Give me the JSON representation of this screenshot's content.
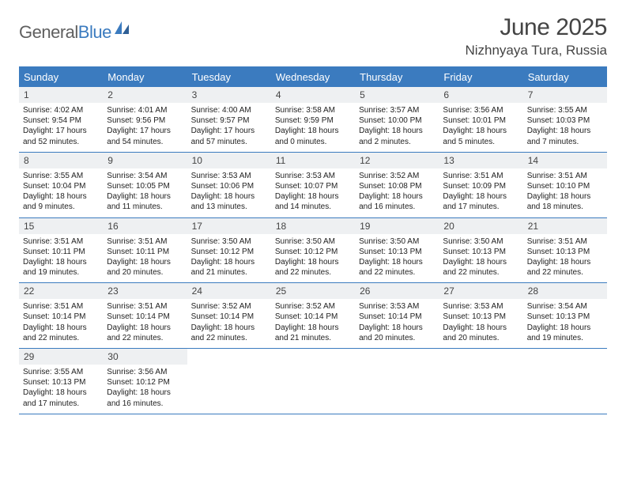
{
  "logo": {
    "text_gray": "General",
    "text_blue": "Blue"
  },
  "title": {
    "month": "June 2025",
    "location": "Nizhnyaya Tura, Russia"
  },
  "colors": {
    "header_bar": "#3b7bbf",
    "daynum_bg": "#eef0f2",
    "divider": "#3b7bbf",
    "text": "#222222",
    "title_text": "#444444"
  },
  "weekdays": [
    "Sunday",
    "Monday",
    "Tuesday",
    "Wednesday",
    "Thursday",
    "Friday",
    "Saturday"
  ],
  "weeks": [
    [
      {
        "n": "1",
        "sr": "Sunrise: 4:02 AM",
        "ss": "Sunset: 9:54 PM",
        "dl1": "Daylight: 17 hours",
        "dl2": "and 52 minutes."
      },
      {
        "n": "2",
        "sr": "Sunrise: 4:01 AM",
        "ss": "Sunset: 9:56 PM",
        "dl1": "Daylight: 17 hours",
        "dl2": "and 54 minutes."
      },
      {
        "n": "3",
        "sr": "Sunrise: 4:00 AM",
        "ss": "Sunset: 9:57 PM",
        "dl1": "Daylight: 17 hours",
        "dl2": "and 57 minutes."
      },
      {
        "n": "4",
        "sr": "Sunrise: 3:58 AM",
        "ss": "Sunset: 9:59 PM",
        "dl1": "Daylight: 18 hours",
        "dl2": "and 0 minutes."
      },
      {
        "n": "5",
        "sr": "Sunrise: 3:57 AM",
        "ss": "Sunset: 10:00 PM",
        "dl1": "Daylight: 18 hours",
        "dl2": "and 2 minutes."
      },
      {
        "n": "6",
        "sr": "Sunrise: 3:56 AM",
        "ss": "Sunset: 10:01 PM",
        "dl1": "Daylight: 18 hours",
        "dl2": "and 5 minutes."
      },
      {
        "n": "7",
        "sr": "Sunrise: 3:55 AM",
        "ss": "Sunset: 10:03 PM",
        "dl1": "Daylight: 18 hours",
        "dl2": "and 7 minutes."
      }
    ],
    [
      {
        "n": "8",
        "sr": "Sunrise: 3:55 AM",
        "ss": "Sunset: 10:04 PM",
        "dl1": "Daylight: 18 hours",
        "dl2": "and 9 minutes."
      },
      {
        "n": "9",
        "sr": "Sunrise: 3:54 AM",
        "ss": "Sunset: 10:05 PM",
        "dl1": "Daylight: 18 hours",
        "dl2": "and 11 minutes."
      },
      {
        "n": "10",
        "sr": "Sunrise: 3:53 AM",
        "ss": "Sunset: 10:06 PM",
        "dl1": "Daylight: 18 hours",
        "dl2": "and 13 minutes."
      },
      {
        "n": "11",
        "sr": "Sunrise: 3:53 AM",
        "ss": "Sunset: 10:07 PM",
        "dl1": "Daylight: 18 hours",
        "dl2": "and 14 minutes."
      },
      {
        "n": "12",
        "sr": "Sunrise: 3:52 AM",
        "ss": "Sunset: 10:08 PM",
        "dl1": "Daylight: 18 hours",
        "dl2": "and 16 minutes."
      },
      {
        "n": "13",
        "sr": "Sunrise: 3:51 AM",
        "ss": "Sunset: 10:09 PM",
        "dl1": "Daylight: 18 hours",
        "dl2": "and 17 minutes."
      },
      {
        "n": "14",
        "sr": "Sunrise: 3:51 AM",
        "ss": "Sunset: 10:10 PM",
        "dl1": "Daylight: 18 hours",
        "dl2": "and 18 minutes."
      }
    ],
    [
      {
        "n": "15",
        "sr": "Sunrise: 3:51 AM",
        "ss": "Sunset: 10:11 PM",
        "dl1": "Daylight: 18 hours",
        "dl2": "and 19 minutes."
      },
      {
        "n": "16",
        "sr": "Sunrise: 3:51 AM",
        "ss": "Sunset: 10:11 PM",
        "dl1": "Daylight: 18 hours",
        "dl2": "and 20 minutes."
      },
      {
        "n": "17",
        "sr": "Sunrise: 3:50 AM",
        "ss": "Sunset: 10:12 PM",
        "dl1": "Daylight: 18 hours",
        "dl2": "and 21 minutes."
      },
      {
        "n": "18",
        "sr": "Sunrise: 3:50 AM",
        "ss": "Sunset: 10:12 PM",
        "dl1": "Daylight: 18 hours",
        "dl2": "and 22 minutes."
      },
      {
        "n": "19",
        "sr": "Sunrise: 3:50 AM",
        "ss": "Sunset: 10:13 PM",
        "dl1": "Daylight: 18 hours",
        "dl2": "and 22 minutes."
      },
      {
        "n": "20",
        "sr": "Sunrise: 3:50 AM",
        "ss": "Sunset: 10:13 PM",
        "dl1": "Daylight: 18 hours",
        "dl2": "and 22 minutes."
      },
      {
        "n": "21",
        "sr": "Sunrise: 3:51 AM",
        "ss": "Sunset: 10:13 PM",
        "dl1": "Daylight: 18 hours",
        "dl2": "and 22 minutes."
      }
    ],
    [
      {
        "n": "22",
        "sr": "Sunrise: 3:51 AM",
        "ss": "Sunset: 10:14 PM",
        "dl1": "Daylight: 18 hours",
        "dl2": "and 22 minutes."
      },
      {
        "n": "23",
        "sr": "Sunrise: 3:51 AM",
        "ss": "Sunset: 10:14 PM",
        "dl1": "Daylight: 18 hours",
        "dl2": "and 22 minutes."
      },
      {
        "n": "24",
        "sr": "Sunrise: 3:52 AM",
        "ss": "Sunset: 10:14 PM",
        "dl1": "Daylight: 18 hours",
        "dl2": "and 22 minutes."
      },
      {
        "n": "25",
        "sr": "Sunrise: 3:52 AM",
        "ss": "Sunset: 10:14 PM",
        "dl1": "Daylight: 18 hours",
        "dl2": "and 21 minutes."
      },
      {
        "n": "26",
        "sr": "Sunrise: 3:53 AM",
        "ss": "Sunset: 10:14 PM",
        "dl1": "Daylight: 18 hours",
        "dl2": "and 20 minutes."
      },
      {
        "n": "27",
        "sr": "Sunrise: 3:53 AM",
        "ss": "Sunset: 10:13 PM",
        "dl1": "Daylight: 18 hours",
        "dl2": "and 20 minutes."
      },
      {
        "n": "28",
        "sr": "Sunrise: 3:54 AM",
        "ss": "Sunset: 10:13 PM",
        "dl1": "Daylight: 18 hours",
        "dl2": "and 19 minutes."
      }
    ],
    [
      {
        "n": "29",
        "sr": "Sunrise: 3:55 AM",
        "ss": "Sunset: 10:13 PM",
        "dl1": "Daylight: 18 hours",
        "dl2": "and 17 minutes."
      },
      {
        "n": "30",
        "sr": "Sunrise: 3:56 AM",
        "ss": "Sunset: 10:12 PM",
        "dl1": "Daylight: 18 hours",
        "dl2": "and 16 minutes."
      },
      {
        "empty": true
      },
      {
        "empty": true
      },
      {
        "empty": true
      },
      {
        "empty": true
      },
      {
        "empty": true
      }
    ]
  ]
}
